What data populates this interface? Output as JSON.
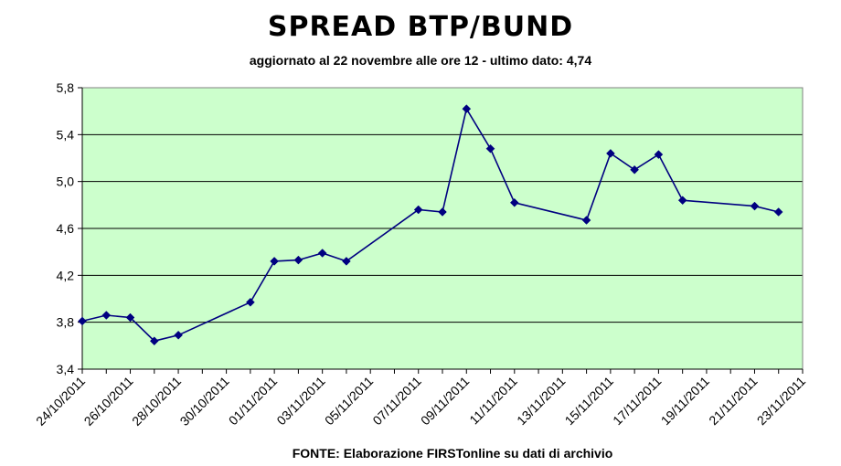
{
  "chart_data": {
    "type": "line",
    "title": "SPREAD BTP/BUND",
    "subtitle": "aggiornato al 22 novembre alle ore 12 - ultimo dato: 4,74",
    "source": "FONTE: Elaborazione FIRSTonline su dati di archivio",
    "xlabel": "",
    "ylabel": "",
    "x_tick_labels": [
      "24/10/2011",
      "26/10/2011",
      "28/10/2011",
      "30/10/2011",
      "01/11/2011",
      "03/11/2011",
      "05/11/2011",
      "07/11/2011",
      "09/11/2011",
      "11/11/2011",
      "13/11/2011",
      "15/11/2011",
      "17/11/2011",
      "19/11/2011",
      "21/11/2011",
      "23/11/2011"
    ],
    "y_tick_labels": [
      "3,4",
      "3,8",
      "4,2",
      "4,6",
      "5,0",
      "5,4",
      "5,8"
    ],
    "ylim": [
      3.4,
      5.8
    ],
    "xlim": [
      "2011-10-24",
      "2011-11-23"
    ],
    "grid": true,
    "colors": {
      "plot_background": "#ccffcc",
      "line": "#000080",
      "grid": "#000000"
    },
    "series": [
      {
        "x": [
          "2011-10-24",
          "2011-10-25",
          "2011-10-26",
          "2011-10-27",
          "2011-10-28",
          "2011-10-31",
          "2011-11-01",
          "2011-11-02",
          "2011-11-03",
          "2011-11-04",
          "2011-11-07",
          "2011-11-08",
          "2011-11-09",
          "2011-11-10",
          "2011-11-11",
          "2011-11-14",
          "2011-11-15",
          "2011-11-16",
          "2011-11-17",
          "2011-11-18",
          "2011-11-21",
          "2011-11-22"
        ],
        "values": [
          3.81,
          3.86,
          3.84,
          3.64,
          3.69,
          3.97,
          4.32,
          4.33,
          4.39,
          4.32,
          4.76,
          4.74,
          5.62,
          5.28,
          4.82,
          4.67,
          5.24,
          5.1,
          5.23,
          4.84,
          4.79,
          4.74
        ]
      }
    ]
  }
}
